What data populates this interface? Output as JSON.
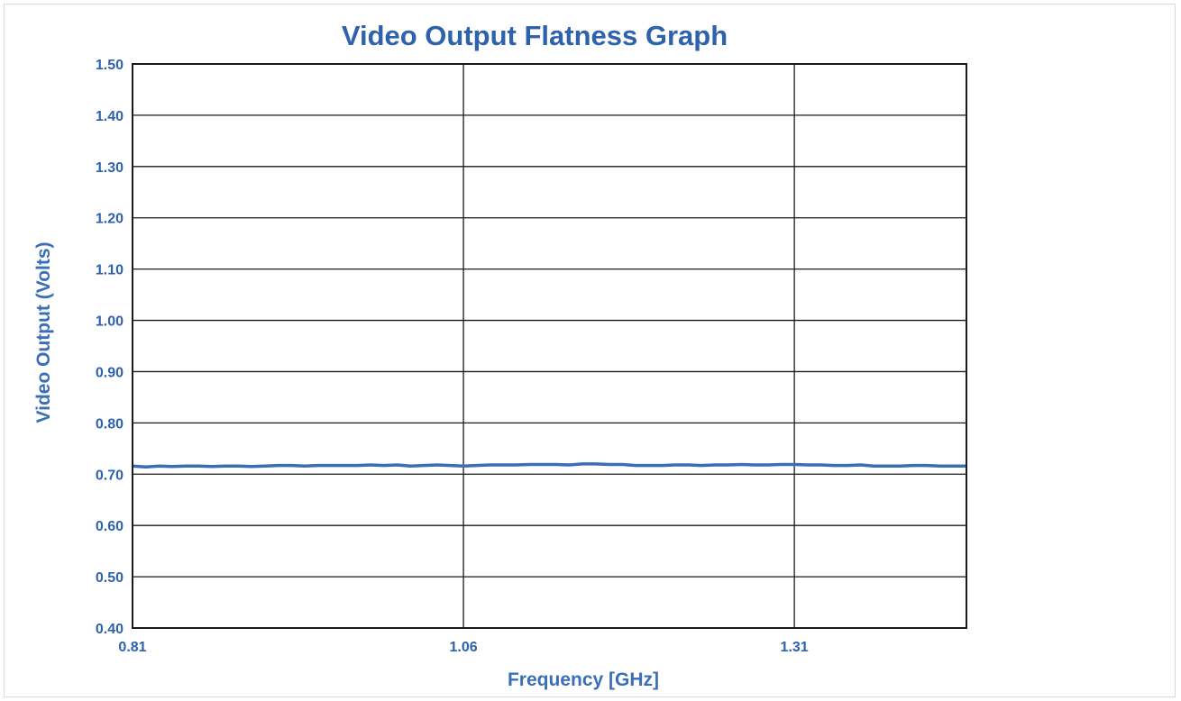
{
  "chart_data": {
    "type": "line",
    "title": "Video Output Flatness Graph",
    "xlabel": "Frequency [GHz]",
    "ylabel": "Video Output (Volts)",
    "xlim": [
      0.81,
      1.44
    ],
    "ylim": [
      0.4,
      1.5
    ],
    "x_ticks": [
      0.81,
      1.06,
      1.31
    ],
    "x_tick_labels": [
      "0.81",
      "1.06",
      "1.31"
    ],
    "y_ticks": [
      0.4,
      0.5,
      0.6,
      0.7,
      0.8,
      0.9,
      1.0,
      1.1,
      1.2,
      1.3,
      1.4,
      1.5
    ],
    "y_tick_labels": [
      "0.40",
      "0.50",
      "0.60",
      "0.70",
      "0.80",
      "0.90",
      "1.00",
      "1.10",
      "1.20",
      "1.30",
      "1.40",
      "1.50"
    ],
    "grid": true,
    "legend": "none",
    "line_color": "#3a6fb8",
    "grid_color": "#1a1a1a",
    "series": [
      {
        "x": [
          0.81,
          0.82,
          0.83,
          0.84,
          0.85,
          0.86,
          0.87,
          0.88,
          0.89,
          0.9,
          0.91,
          0.92,
          0.93,
          0.94,
          0.95,
          0.96,
          0.97,
          0.98,
          0.99,
          1.0,
          1.01,
          1.02,
          1.03,
          1.04,
          1.05,
          1.06,
          1.07,
          1.08,
          1.09,
          1.1,
          1.11,
          1.12,
          1.13,
          1.14,
          1.15,
          1.16,
          1.17,
          1.18,
          1.19,
          1.2,
          1.21,
          1.22,
          1.23,
          1.24,
          1.25,
          1.26,
          1.27,
          1.28,
          1.29,
          1.3,
          1.31,
          1.32,
          1.33,
          1.34,
          1.35,
          1.36,
          1.37,
          1.38,
          1.39,
          1.4,
          1.41,
          1.42,
          1.43,
          1.44
        ],
        "values": [
          0.716,
          0.714,
          0.716,
          0.715,
          0.716,
          0.716,
          0.715,
          0.716,
          0.716,
          0.715,
          0.716,
          0.717,
          0.717,
          0.716,
          0.717,
          0.717,
          0.717,
          0.717,
          0.718,
          0.717,
          0.718,
          0.716,
          0.717,
          0.718,
          0.717,
          0.716,
          0.717,
          0.718,
          0.718,
          0.718,
          0.719,
          0.719,
          0.719,
          0.718,
          0.72,
          0.72,
          0.719,
          0.719,
          0.717,
          0.717,
          0.717,
          0.718,
          0.718,
          0.717,
          0.718,
          0.718,
          0.719,
          0.718,
          0.718,
          0.719,
          0.719,
          0.718,
          0.718,
          0.717,
          0.717,
          0.718,
          0.716,
          0.716,
          0.716,
          0.717,
          0.717,
          0.716,
          0.716,
          0.716
        ]
      }
    ]
  }
}
